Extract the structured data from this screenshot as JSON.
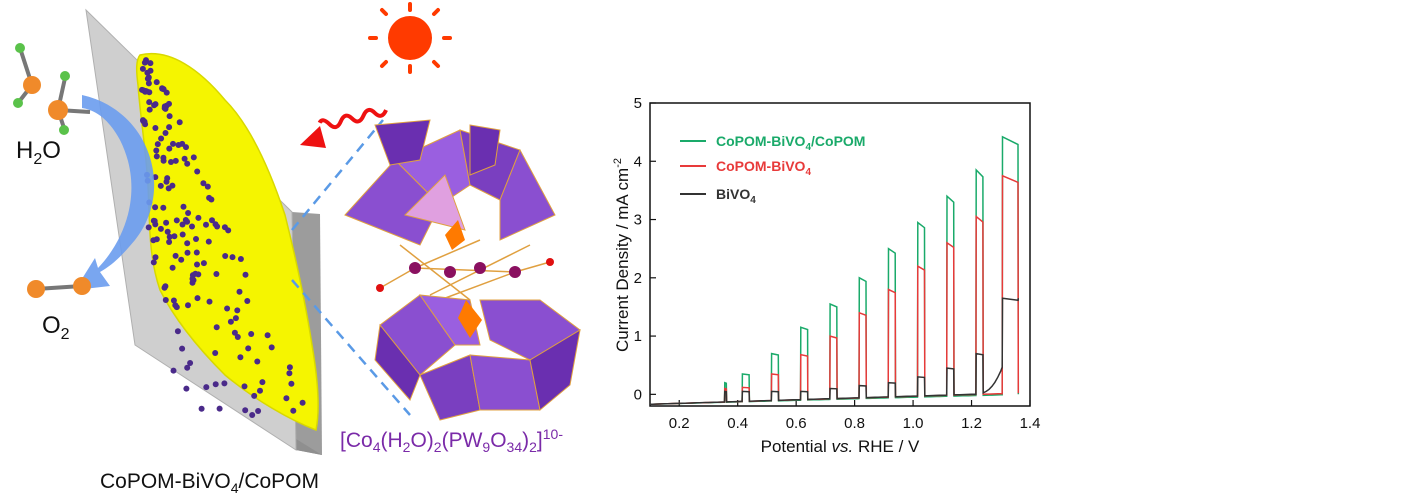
{
  "illustration": {
    "water_label": "H2O",
    "oxygen_label": "O2",
    "electrode_label": "CoPOM-BiVO4/CoPOM",
    "cluster_formula": "[Co4(H2O)2(PW9O34)2]10-",
    "colors": {
      "film": "#f5f500",
      "substrate": "#c8c8c8",
      "dots": "#4a2a8a",
      "sun": "#ff3a00",
      "polyhedra": "#8a4fd0",
      "formula": "#7a2aa8",
      "arrow": "#5b8ee6"
    }
  },
  "chart_data": {
    "type": "line",
    "xlabel": "Potential vs. RHE / V",
    "ylabel": "Current Density / mA cm-2",
    "xlim": [
      0.1,
      1.4
    ],
    "ylim": [
      -0.2,
      5
    ],
    "xticks": [
      "0.2",
      "0.4",
      "0.6",
      "0.8",
      "1.0",
      "1.2",
      "1.4"
    ],
    "yticks": [
      "0",
      "1",
      "2",
      "3",
      "4",
      "5"
    ],
    "grid": false,
    "legend_position": "top-left",
    "chopped_light": true,
    "light_on_windows": [
      [
        0.355,
        0.362
      ],
      [
        0.415,
        0.44
      ],
      [
        0.515,
        0.54
      ],
      [
        0.615,
        0.64
      ],
      [
        0.715,
        0.74
      ],
      [
        0.815,
        0.84
      ],
      [
        0.915,
        0.94
      ],
      [
        1.015,
        1.04
      ],
      [
        1.115,
        1.14
      ],
      [
        1.215,
        1.24
      ],
      [
        1.305,
        1.36
      ]
    ],
    "series": [
      {
        "name": "CoPOM-BiVO4/CoPOM",
        "color": "#1aaa6a",
        "dark": [
          [
            0.1,
            -0.17
          ],
          [
            1.36,
            0.0
          ]
        ],
        "light_peaks": [
          0.2,
          0.35,
          0.7,
          1.15,
          1.55,
          2.0,
          2.5,
          2.95,
          3.4,
          3.85,
          4.42
        ]
      },
      {
        "name": "CoPOM-BiVO4",
        "color": "#e83a3a",
        "dark": [
          [
            0.1,
            -0.17
          ],
          [
            1.36,
            0.02
          ]
        ],
        "light_peaks": [
          0.1,
          0.12,
          0.35,
          0.68,
          1.0,
          1.4,
          1.8,
          2.2,
          2.6,
          3.05,
          3.75
        ]
      },
      {
        "name": "BiVO4",
        "color": "#333333",
        "dark": [
          [
            0.1,
            -0.17
          ],
          [
            1.2,
            0.0
          ],
          [
            1.36,
            1.65
          ]
        ],
        "light_peaks": [
          0.05,
          0.05,
          0.05,
          0.05,
          0.1,
          0.15,
          0.2,
          0.3,
          0.45,
          0.7,
          1.65
        ]
      }
    ]
  }
}
